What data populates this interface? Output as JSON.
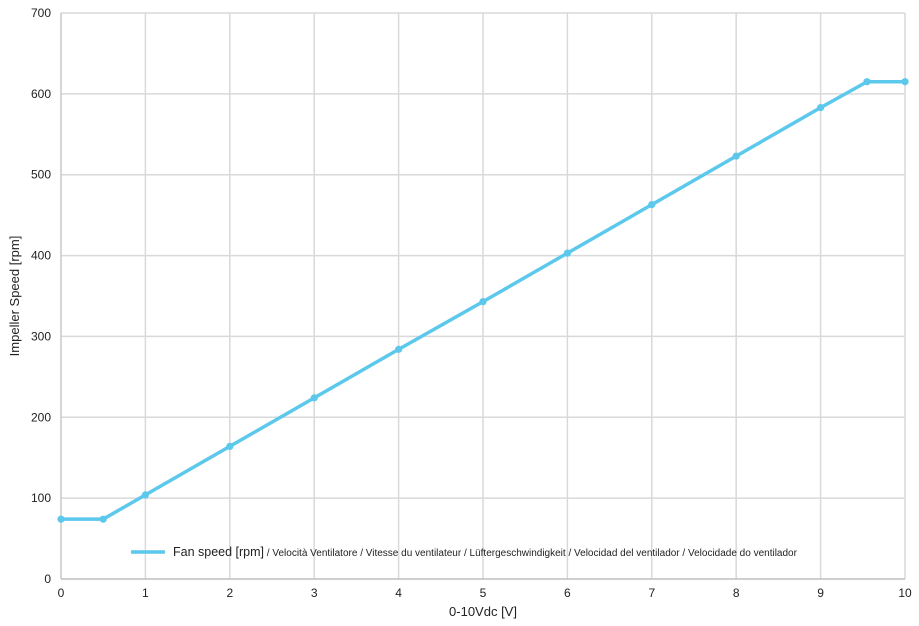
{
  "chart_data": {
    "type": "line",
    "title": "",
    "xlabel": "0-10Vdc [V]",
    "ylabel": "Impeller Speed [rpm]",
    "xlim": [
      0,
      10
    ],
    "ylim": [
      0,
      700
    ],
    "x_ticks": [
      0,
      1,
      2,
      3,
      4,
      5,
      6,
      7,
      8,
      9,
      10
    ],
    "y_ticks": [
      0,
      100,
      200,
      300,
      400,
      500,
      600,
      700
    ],
    "grid": true,
    "legend_position": "bottom",
    "series": [
      {
        "name": "Fan speed [rpm] / Velocità Ventilatore / Vitesse du ventilateur / Lüftergeschwindigkeit / Velocidad del ventilador / Velocidade do ventilador",
        "color": "#5bc8ec",
        "x": [
          0,
          0.5,
          1,
          2,
          3,
          4,
          5,
          6,
          7,
          8,
          9,
          9.55,
          10
        ],
        "y": [
          74,
          74,
          104,
          164,
          224,
          284,
          343,
          403,
          463,
          523,
          583,
          615,
          615
        ]
      }
    ]
  },
  "legend": {
    "main": "Fan speed [rpm]",
    "rest": " / Velocità Ventilatore / Vitesse du ventilateur / Lüftergeschwindigkeit / Velocidad del ventilador / Velocidade do ventilador"
  },
  "colors": {
    "grid": "#d9d9d9",
    "axis": "#bfbfbf",
    "line": "#5bc8ec"
  }
}
